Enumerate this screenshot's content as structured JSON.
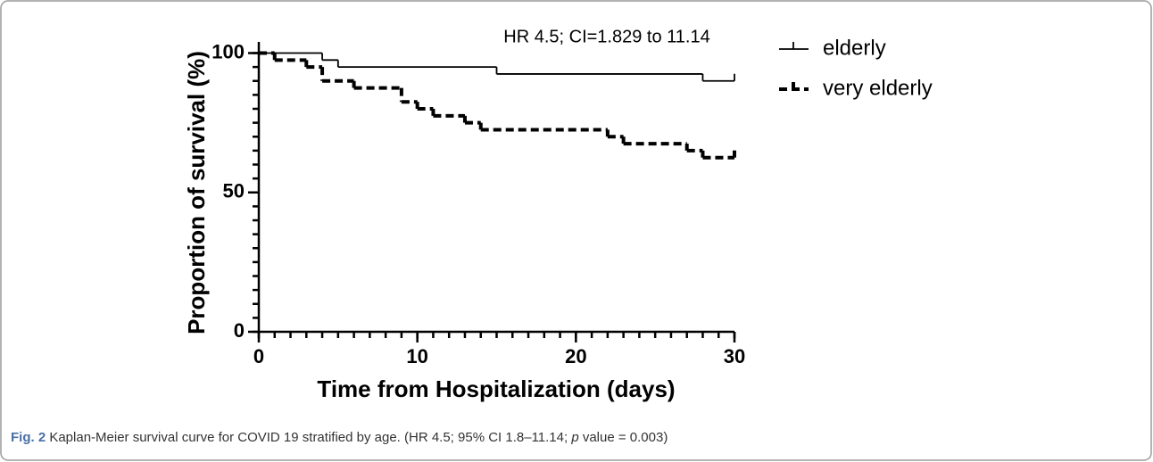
{
  "chart_data": {
    "type": "line",
    "step": true,
    "annotation": "HR 4.5; CI=1.829 to 11.14",
    "x_label": "Time from Hospitalization (days)",
    "y_label": "Proportion of survival (%)",
    "xlim": [
      0,
      30
    ],
    "xticks": [
      0,
      10,
      20,
      30
    ],
    "xminor_step": 1,
    "ylim": [
      0,
      104
    ],
    "yticks": [
      0,
      50,
      100
    ],
    "yminor_step": 5,
    "series": [
      {
        "name": "elderly",
        "color": "#000000",
        "dashed": false,
        "x": [
          0,
          4,
          5,
          15,
          28,
          30
        ],
        "values": [
          100,
          97.5,
          95,
          92.5,
          90,
          90
        ]
      },
      {
        "name": "very elderly",
        "color": "#000000",
        "dashed": true,
        "x": [
          0,
          1,
          3,
          4,
          6,
          9,
          10,
          11,
          13,
          14,
          22,
          23,
          27,
          28,
          30
        ],
        "values": [
          100,
          97.5,
          95,
          90,
          87.5,
          82.5,
          80,
          77.5,
          75,
          72.5,
          70,
          67.5,
          65,
          62.5,
          62.5
        ]
      }
    ],
    "caption_label": "Fig. 2",
    "caption_parts": [
      " Kaplan-Meier survival curve for COVID 19 stratified by age. (HR 4.5; 95% CI 1.8–11.14; ",
      "p",
      " value = 0.003)"
    ]
  }
}
